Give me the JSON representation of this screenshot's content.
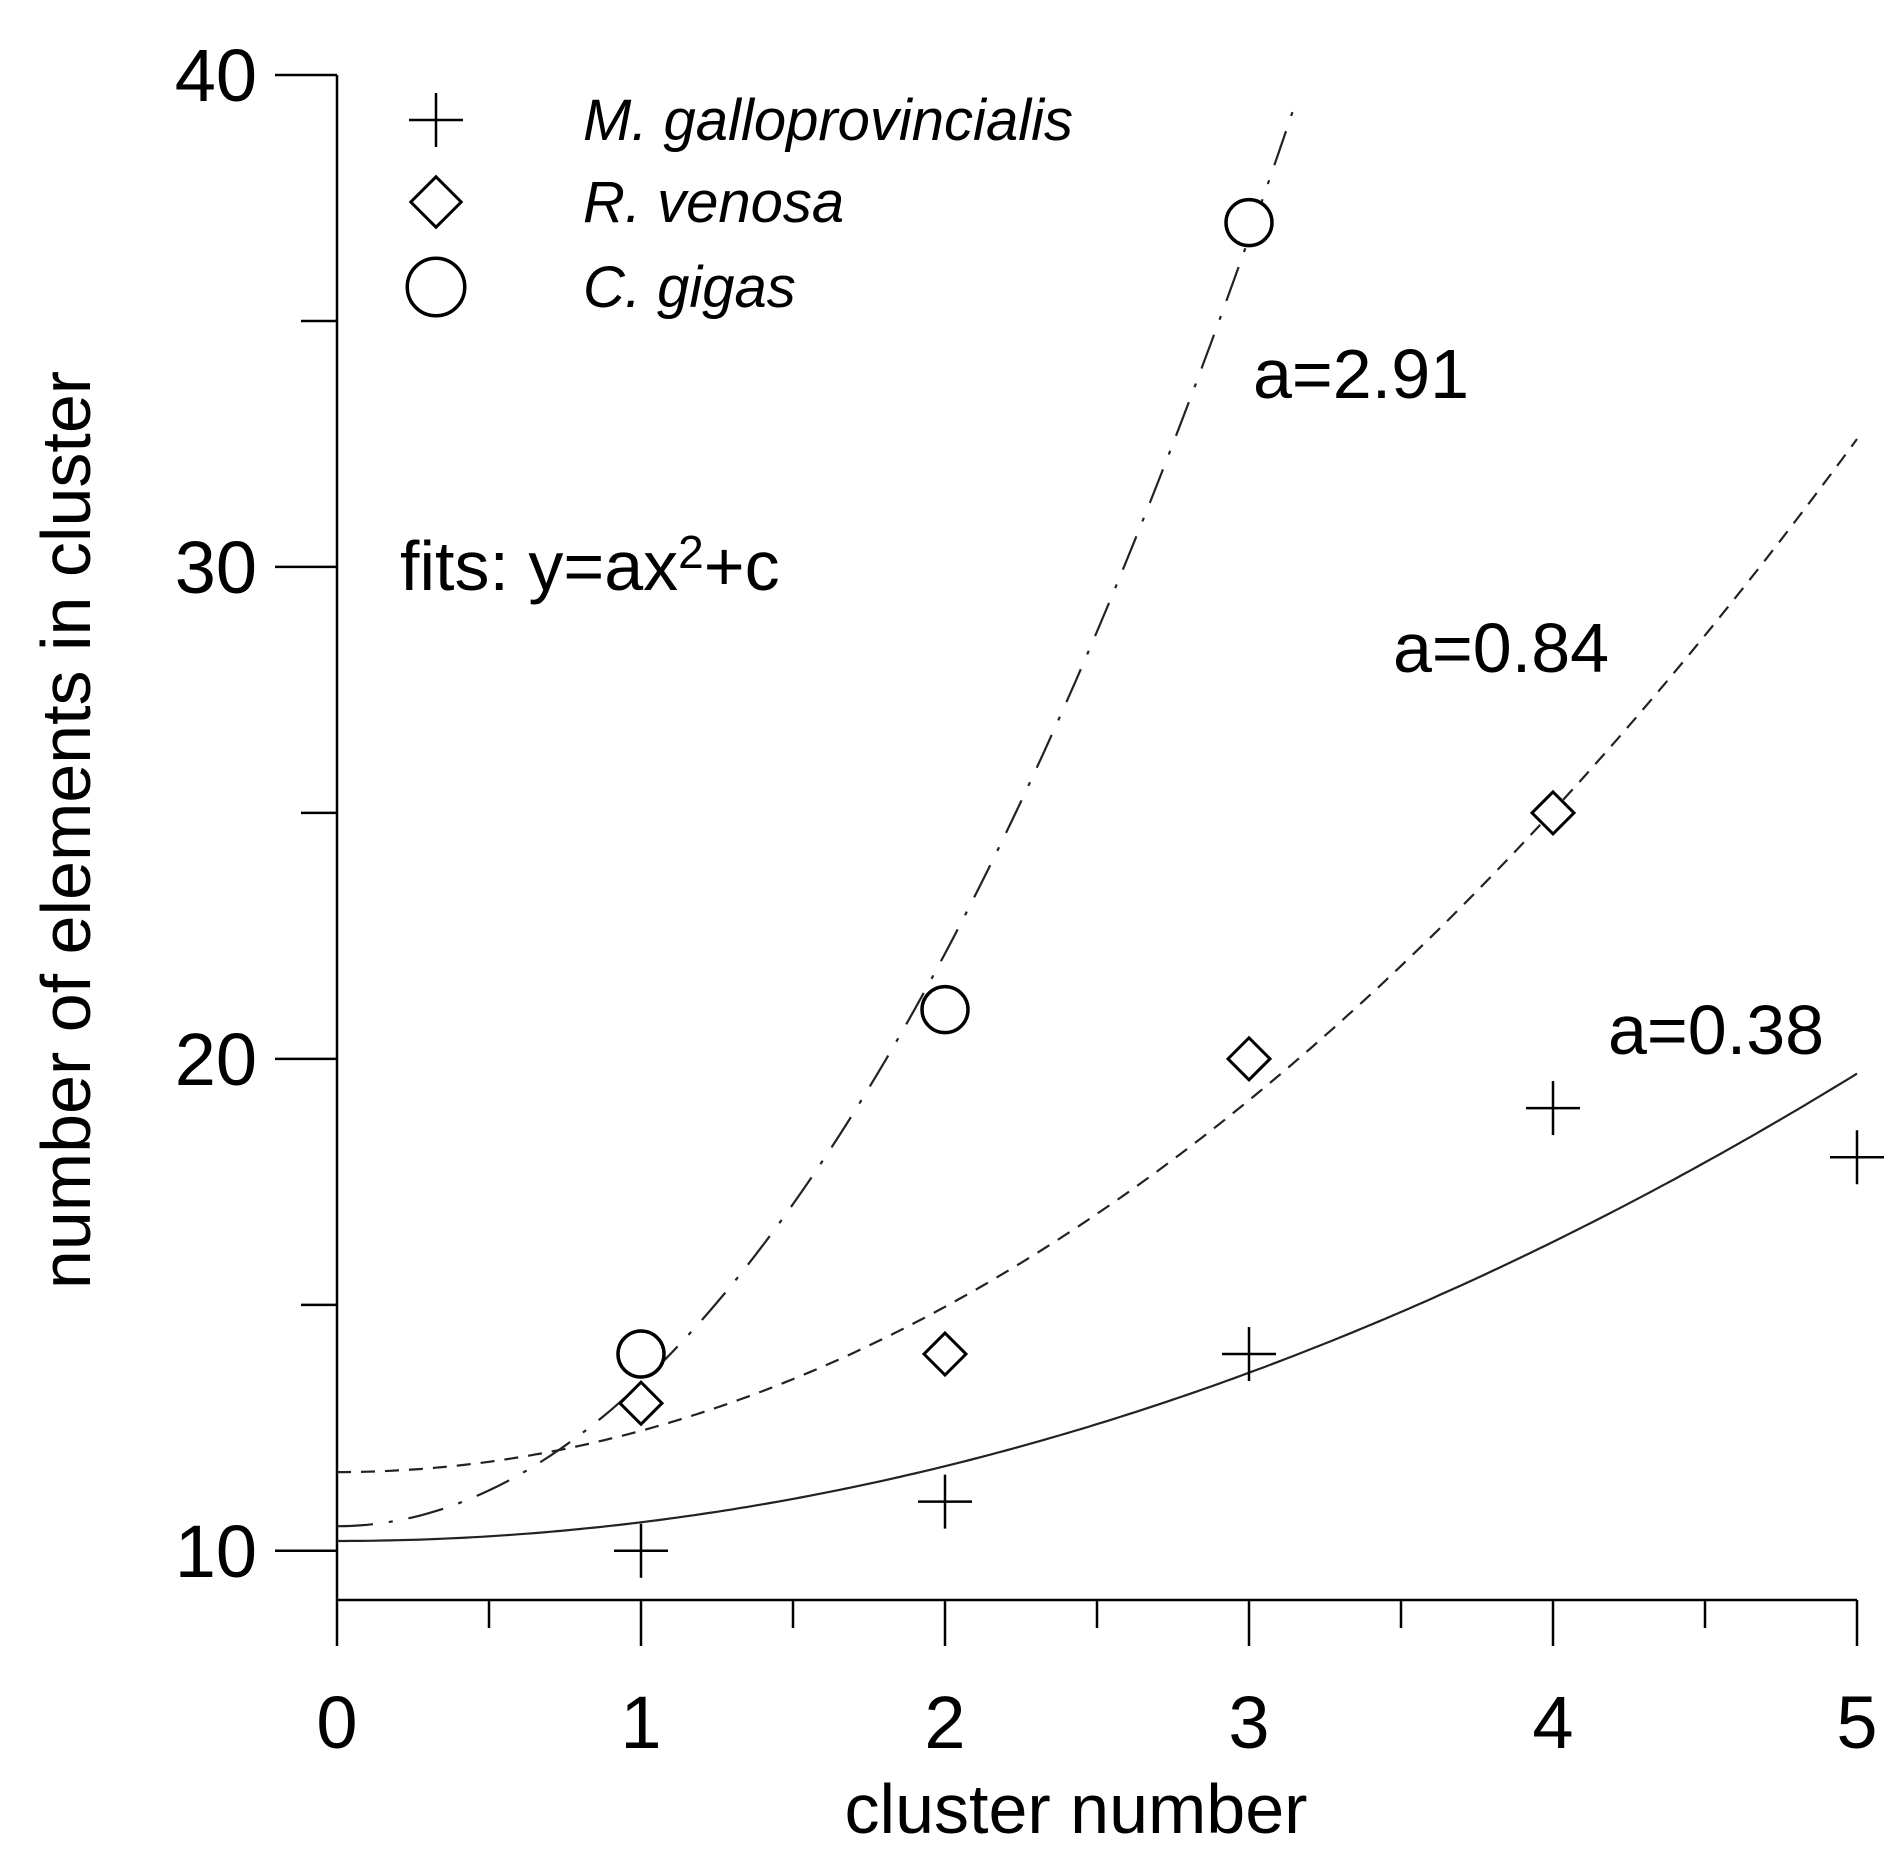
{
  "chart_data": {
    "type": "scatter",
    "title": "",
    "xlabel": "cluster number",
    "ylabel": "number of elements in cluster",
    "xlim": [
      0,
      5
    ],
    "ylim": [
      9,
      40
    ],
    "x_ticks": [
      0,
      1,
      2,
      3,
      4,
      5
    ],
    "x_tick_labels": [
      "0",
      "1",
      "2",
      "3",
      "4",
      "5"
    ],
    "y_ticks": [
      10,
      20,
      30,
      40
    ],
    "y_tick_labels": [
      "10",
      "20",
      "30",
      "40"
    ],
    "grid": false,
    "legend_position": "top-left",
    "series": [
      {
        "name": "M. galloprovincialis",
        "marker": "plus",
        "line_style": "solid",
        "x": [
          1,
          2,
          3,
          4,
          5
        ],
        "y": [
          10,
          11,
          14,
          19,
          18
        ],
        "fit": {
          "a": 0.38,
          "c": 10.2
        }
      },
      {
        "name": "R. venosa",
        "marker": "diamond",
        "line_style": "dashed",
        "x": [
          1,
          2,
          3,
          4
        ],
        "y": [
          13,
          14,
          20,
          25
        ],
        "fit": {
          "a": 0.84,
          "c": 11.6
        }
      },
      {
        "name": "C. gigas",
        "marker": "circle",
        "line_style": "dash-dot",
        "x": [
          1,
          2,
          3
        ],
        "y": [
          14,
          21,
          37
        ],
        "fit": {
          "a": 2.91,
          "c": 10.5
        }
      }
    ],
    "annotations": {
      "fits_label_prefix": "fits: y=ax",
      "fits_label_sup": "2",
      "fits_label_suffix": "+c",
      "fit_labels": [
        "a=2.91",
        "a=0.84",
        "a=0.38"
      ]
    }
  }
}
